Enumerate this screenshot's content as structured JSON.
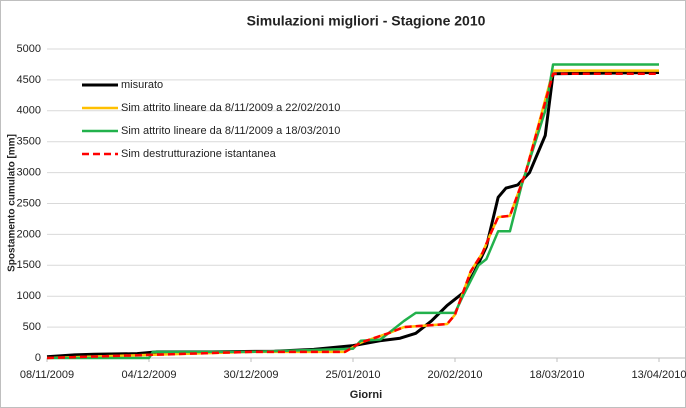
{
  "chart_data": {
    "type": "line",
    "title": "Simulazioni migliori - Stagione 2010",
    "xlabel": "Giorni",
    "ylabel": "Spostamento cumulato [mm]",
    "xlim": [
      "2009-11-08",
      "2010-04-13"
    ],
    "ylim": [
      0,
      5000
    ],
    "xticks": [
      {
        "value": "2009-11-08",
        "label": "08/11/2009"
      },
      {
        "value": "2009-12-04",
        "label": "04/12/2009"
      },
      {
        "value": "2009-12-30",
        "label": "30/12/2009"
      },
      {
        "value": "2010-01-25",
        "label": "25/01/2010"
      },
      {
        "value": "2010-02-20",
        "label": "20/02/2010"
      },
      {
        "value": "2010-03-18",
        "label": "18/03/2010"
      },
      {
        "value": "2010-04-13",
        "label": "13/04/2010"
      }
    ],
    "yticks": [
      0,
      500,
      1000,
      1500,
      2000,
      2500,
      3000,
      3500,
      4000,
      4500,
      5000
    ],
    "grid": true,
    "legend": "upper left",
    "series": [
      {
        "name": "misurato",
        "color": "#000000",
        "width": 3,
        "dash": false,
        "x": [
          "2009-11-08",
          "2009-11-15",
          "2009-11-20",
          "2009-12-01",
          "2009-12-06",
          "2009-12-20",
          "2010-01-05",
          "2010-01-15",
          "2010-01-25",
          "2010-02-01",
          "2010-02-06",
          "2010-02-10",
          "2010-02-14",
          "2010-02-18",
          "2010-02-22",
          "2010-02-25",
          "2010-02-28",
          "2010-03-03",
          "2010-03-05",
          "2010-03-08",
          "2010-03-11",
          "2010-03-15",
          "2010-03-17",
          "2010-04-13"
        ],
        "values": [
          20,
          50,
          60,
          70,
          100,
          100,
          110,
          140,
          200,
          280,
          320,
          400,
          600,
          850,
          1050,
          1400,
          1800,
          2600,
          2750,
          2800,
          3000,
          3600,
          4600,
          4620
        ]
      },
      {
        "name": "Sim attrito lineare da 8/11/2009 a 22/02/2010",
        "color": "#ffc000",
        "width": 2.5,
        "dash": false,
        "x": [
          "2009-11-08",
          "2009-12-04",
          "2009-12-30",
          "2010-01-23",
          "2010-01-27",
          "2010-02-03",
          "2010-02-07",
          "2010-02-18",
          "2010-02-20",
          "2010-02-24",
          "2010-02-27",
          "2010-03-01",
          "2010-03-03",
          "2010-03-06",
          "2010-03-10",
          "2010-03-17",
          "2010-04-13"
        ],
        "values": [
          0,
          50,
          100,
          100,
          250,
          400,
          500,
          550,
          700,
          1400,
          1700,
          2000,
          2280,
          2300,
          3000,
          4650,
          4650
        ]
      },
      {
        "name": "Sim attrito lineare da 8/11/2009 a 18/03/2010",
        "color": "#22b14c",
        "width": 2.5,
        "dash": false,
        "x": [
          "2009-11-08",
          "2009-12-04",
          "2009-12-05",
          "2009-12-30",
          "2010-01-25",
          "2010-01-27",
          "2010-02-01",
          "2010-02-07",
          "2010-02-10",
          "2010-02-20",
          "2010-02-22",
          "2010-02-26",
          "2010-02-28",
          "2010-03-03",
          "2010-03-06",
          "2010-03-09",
          "2010-03-15",
          "2010-03-17",
          "2010-04-13"
        ],
        "values": [
          0,
          0,
          100,
          100,
          150,
          280,
          300,
          600,
          730,
          730,
          1000,
          1500,
          1600,
          2050,
          2050,
          2800,
          4000,
          4750,
          4750
        ]
      },
      {
        "name": "Sim destrutturazione istantanea",
        "color": "#ff0000",
        "width": 2.5,
        "dash": true,
        "x": [
          "2009-11-08",
          "2009-12-04",
          "2009-12-30",
          "2010-01-23",
          "2010-01-27",
          "2010-02-03",
          "2010-02-07",
          "2010-02-18",
          "2010-02-20",
          "2010-02-24",
          "2010-02-27",
          "2010-03-01",
          "2010-03-03",
          "2010-03-06",
          "2010-03-10",
          "2010-03-17",
          "2010-04-13"
        ],
        "values": [
          0,
          50,
          100,
          100,
          250,
          400,
          500,
          550,
          700,
          1400,
          1700,
          2000,
          2280,
          2300,
          3000,
          4600,
          4600
        ]
      }
    ]
  }
}
